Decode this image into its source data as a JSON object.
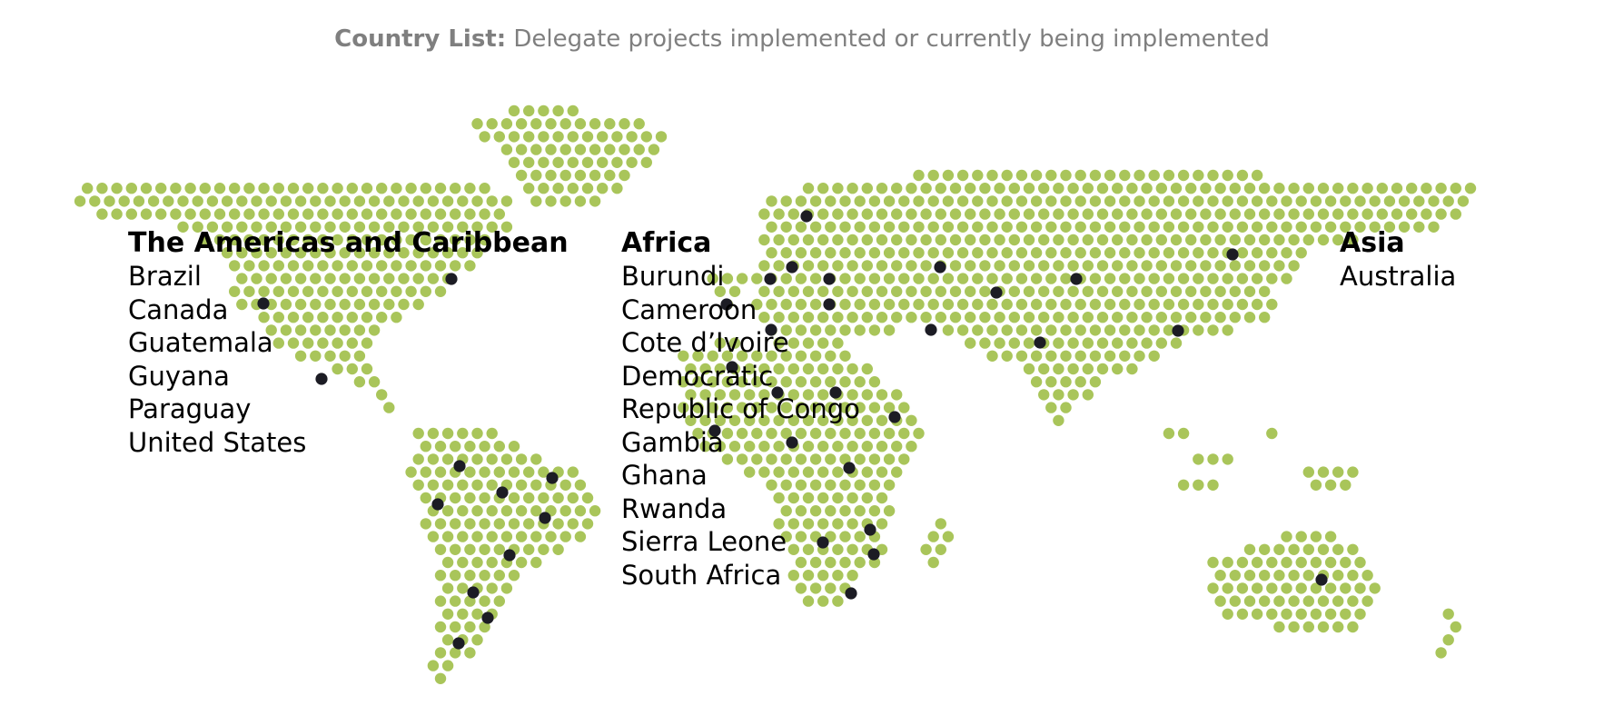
{
  "header": {
    "title_bold": "Country List:",
    "title_rest": " Delegate projects implemented or currently being implemented"
  },
  "map": {
    "land_dot_color": "#a9c55a",
    "project_dot_color": "#1c1c24",
    "dot_style": "hexagonal dot grid world map"
  },
  "regions": [
    {
      "name": "The Americas and Caribbean",
      "countries": [
        "Brazil",
        "Canada",
        "Guatemala",
        "Guyana",
        "Paraguay",
        "United States"
      ]
    },
    {
      "name": "Africa",
      "countries": [
        "Burundi",
        "Cameroon",
        "Cote d’Ivoire",
        "Democratic",
        "Republic of Congo",
        "Gambia",
        "Ghana",
        "Rwanda",
        "Sierra Leone",
        "South Africa"
      ]
    },
    {
      "name": "Asia",
      "countries": [
        "Australia"
      ]
    }
  ]
}
